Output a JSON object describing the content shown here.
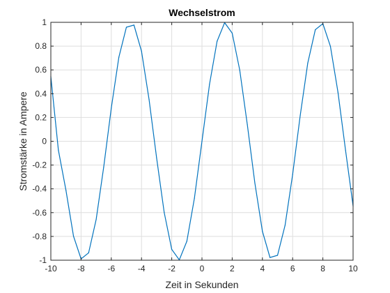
{
  "chart_data": {
    "type": "line",
    "title": "Wechselstrom",
    "xlabel": "Zeit in Sekunden",
    "ylabel": "Stromstärke in Ampere",
    "xlim": [
      -10,
      10
    ],
    "ylim": [
      -1,
      1
    ],
    "xticks": [
      -10,
      -8,
      -6,
      -4,
      -2,
      0,
      2,
      4,
      6,
      8,
      10
    ],
    "xtick_labels": [
      "-10",
      "-8",
      "-6",
      "-4",
      "-2",
      "0",
      "2",
      "4",
      "6",
      "8",
      "10"
    ],
    "yticks": [
      -1,
      -0.8,
      -0.6,
      -0.4,
      -0.2,
      0,
      0.2,
      0.4,
      0.6,
      0.8,
      1
    ],
    "ytick_labels": [
      "-1",
      "-0.8",
      "-0.6",
      "-0.4",
      "-0.2",
      "0",
      "0.2",
      "0.4",
      "0.6",
      "0.8",
      "1"
    ],
    "grid": true,
    "series": [
      {
        "color": "#0072bd",
        "x": [
          -10,
          -9.5,
          -9,
          -8.5,
          -8,
          -7.5,
          -7,
          -6.5,
          -6,
          -5.5,
          -5,
          -4.5,
          -4,
          -3.5,
          -3,
          -2.5,
          -2,
          -1.5,
          -1,
          -0.5,
          0,
          0.5,
          1,
          1.5,
          2,
          2.5,
          3,
          3.5,
          4,
          4.5,
          5,
          5.5,
          6,
          6.5,
          7,
          7.5,
          8,
          8.5,
          9,
          9.5,
          10
        ],
        "y": [
          0.544,
          -0.075,
          -0.412,
          -0.798,
          -0.989,
          -0.938,
          -0.657,
          -0.215,
          0.279,
          0.706,
          0.959,
          0.977,
          0.757,
          0.351,
          -0.141,
          -0.598,
          -0.909,
          -0.997,
          -0.841,
          -0.479,
          0,
          0.479,
          0.841,
          0.997,
          0.909,
          0.598,
          0.141,
          -0.351,
          -0.757,
          -0.977,
          -0.959,
          -0.706,
          -0.279,
          0.215,
          0.657,
          0.938,
          0.989,
          0.798,
          0.412,
          -0.075,
          -0.544
        ]
      }
    ]
  }
}
